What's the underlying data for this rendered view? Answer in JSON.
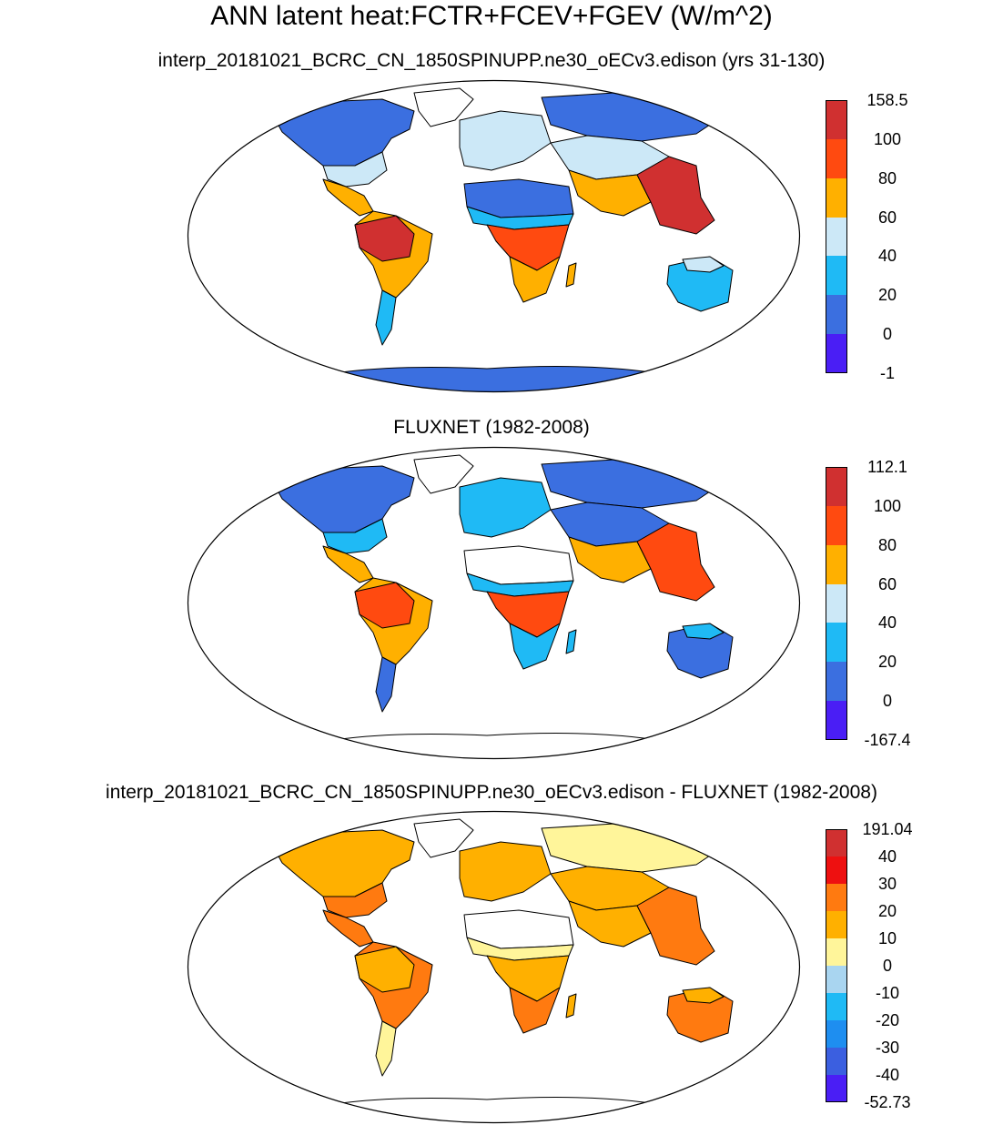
{
  "title": "ANN latent heat:FCTR+FCEV+FGEV (W/m^2)",
  "panels": [
    {
      "id": "model",
      "subtitle": "interp_20181021_BCRC_CN_1850SPINUPP.ne30_oECv3.edison (yrs 31-130)",
      "colorbar": {
        "labels": [
          "158.5",
          "100",
          "80",
          "60",
          "40",
          "20",
          "0",
          "-1"
        ],
        "colors": [
          "#d03030",
          "#ff4a10",
          "#ffb000",
          "#cce8f7",
          "#1fbaf5",
          "#3b6fe0",
          "#4a1ef5"
        ]
      },
      "fills": {
        "north_america": "#3b6fe0",
        "usa_east": "#cce8f7",
        "central_america": "#ffb000",
        "amazon": "#d03030",
        "south_america": "#ffb000",
        "patagonia": "#1fbaf5",
        "greenland": "#ffffff",
        "sahara": "#3b6fe0",
        "sahel": "#1fbaf5",
        "central_africa": "#ff4a10",
        "southern_africa": "#ffb000",
        "europe": "#cce8f7",
        "siberia": "#3b6fe0",
        "central_asia": "#cce8f7",
        "south_asia": "#ffb000",
        "se_asia": "#d03030",
        "australia": "#1fbaf5",
        "australia_north": "#cce8f7",
        "antarctica": "#3b6fe0",
        "madagascar": "#ffb000"
      }
    },
    {
      "id": "obs",
      "subtitle": "FLUXNET (1982-2008)",
      "colorbar": {
        "labels": [
          "112.1",
          "100",
          "80",
          "60",
          "40",
          "20",
          "0",
          "-167.4"
        ],
        "colors": [
          "#d03030",
          "#ff4a10",
          "#ffb000",
          "#cce8f7",
          "#1fbaf5",
          "#3b6fe0",
          "#4a1ef5"
        ]
      },
      "fills": {
        "north_america": "#3b6fe0",
        "usa_east": "#1fbaf5",
        "central_america": "#ffb000",
        "amazon": "#ff4a10",
        "south_america": "#ffb000",
        "patagonia": "#3b6fe0",
        "greenland": "#ffffff",
        "sahara": "#ffffff",
        "sahel": "#1fbaf5",
        "central_africa": "#ff4a10",
        "southern_africa": "#1fbaf5",
        "europe": "#1fbaf5",
        "siberia": "#3b6fe0",
        "central_asia": "#3b6fe0",
        "south_asia": "#ffb000",
        "se_asia": "#ff4a10",
        "australia": "#3b6fe0",
        "australia_north": "#1fbaf5",
        "antarctica": "#ffffff",
        "madagascar": "#1fbaf5"
      }
    },
    {
      "id": "diff",
      "subtitle": "interp_20181021_BCRC_CN_1850SPINUPP.ne30_oECv3.edison - FLUXNET (1982-2008)",
      "colorbar": {
        "labels": [
          "191.04",
          "40",
          "30",
          "20",
          "10",
          "0",
          "-10",
          "-20",
          "-30",
          "-40",
          "-52.73"
        ],
        "colors": [
          "#d03030",
          "#ee1010",
          "#ff7a10",
          "#ffb000",
          "#fff59a",
          "#a9d5f0",
          "#1fbaf5",
          "#1e8ef0",
          "#3b5fe0",
          "#4a1ef5"
        ]
      },
      "fills": {
        "north_america": "#ffb000",
        "usa_east": "#ff7a10",
        "central_america": "#ff7a10",
        "amazon": "#ffb000",
        "south_america": "#ff7a10",
        "patagonia": "#fff59a",
        "greenland": "#ffffff",
        "sahara": "#ffffff",
        "sahel": "#fff59a",
        "central_africa": "#ffb000",
        "southern_africa": "#ff7a10",
        "europe": "#ffb000",
        "siberia": "#fff59a",
        "central_asia": "#ffb000",
        "south_asia": "#ffb000",
        "se_asia": "#ff7a10",
        "australia": "#ff7a10",
        "australia_north": "#ffb000",
        "antarctica": "#ffffff",
        "madagascar": "#ffb000"
      }
    }
  ]
}
